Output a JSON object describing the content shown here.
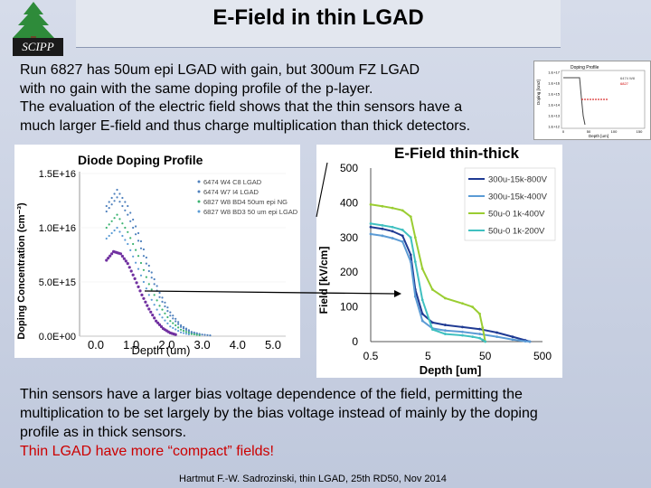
{
  "slide": {
    "title": "E-Field in thin LGAD",
    "logo_text": "SCIPP",
    "paragraph1": [
      "Run 6827 has 50um epi LGAD with gain, but 300um FZ LGAD",
      "with no gain with the same doping profile of the p-layer.",
      "The evaluation of the electric field shows that the thin sensors have a",
      "much larger E-field and thus charge multiplication than thick detectors."
    ],
    "efield_label": "E-Field thin-thick",
    "paragraph2": [
      "Thin sensors have a larger bias voltage dependence of the field, permitting the",
      "multiplication to be set largely by the bias voltage instead of mainly by the doping",
      "profile as in thick sensors."
    ],
    "highlight": "Thin LGAD have more “compact” fields!",
    "footer": "Hartmut F.-W. Sadrozinski, thin LGAD, 25th RD50, Nov  2014"
  },
  "chart_data": [
    {
      "type": "scatter",
      "title": "Diode Doping Profile",
      "xlabel": "Depth (um)",
      "ylabel": "Doping Concentration (cm⁻³)",
      "x_ticks": [
        "0.0",
        "1.0",
        "2.0",
        "3.0",
        "4.0",
        "5.0"
      ],
      "y_ticks": [
        "0.0E+00",
        "5.0E+15",
        "1.0E+16",
        "1.5E+16"
      ],
      "xlim": [
        0,
        5
      ],
      "ylim": [
        0,
        1.5e+16
      ],
      "legend_position": "top-right",
      "colors": [
        "#4f81bd",
        "#4f81bd",
        "#3cb371",
        "#5b9bd5",
        "#7030a0"
      ],
      "series": [
        {
          "name": "6474 W4 C8 LGAD",
          "x": [
            0.3,
            0.6,
            0.9,
            1.2,
            1.5,
            1.8,
            2.1,
            2.4,
            2.7,
            3.0,
            3.3
          ],
          "values": [
            1.2e+16,
            1.35e+16,
            1.2e+16,
            9500000000000000.0,
            6500000000000000.0,
            4000000000000000.0,
            2200000000000000.0,
            1000000000000000.0,
            400000000000000.0,
            150000000000000.0,
            50000000000000.0
          ]
        },
        {
          "name": "6474 W7 I4 LGAD",
          "x": [
            0.3,
            0.6,
            0.9,
            1.2,
            1.5,
            1.8,
            2.1,
            2.4,
            2.7,
            3.0
          ],
          "values": [
            1.15e+16,
            1.28e+16,
            1.12e+16,
            8800000000000000.0,
            6000000000000000.0,
            3600000000000000.0,
            1900000000000000.0,
            850000000000000.0,
            320000000000000.0,
            100000000000000.0
          ]
        },
        {
          "name": "6827 W8 BD4 50um epi NG",
          "x": [
            0.3,
            0.6,
            0.9,
            1.2,
            1.5,
            1.8,
            2.1,
            2.4,
            2.7,
            3.0
          ],
          "values": [
            1e+16,
            1.12e+16,
            9600000000000000.0,
            7400000000000000.0,
            4800000000000000.0,
            2800000000000000.0,
            1400000000000000.0,
            600000000000000.0,
            200000000000000.0,
            60000000000000.0
          ]
        },
        {
          "name": "6827 W8 BD3 50 um epi LGAD",
          "x": [
            0.3,
            0.6,
            0.9,
            1.2,
            1.5,
            1.8,
            2.1,
            2.4,
            2.7
          ],
          "values": [
            9000000000000000.0,
            1e+16,
            8500000000000000.0,
            6200000000000000.0,
            3800000000000000.0,
            2000000000000000.0,
            900000000000000.0,
            350000000000000.0,
            100000000000000.0
          ]
        },
        {
          "name": "",
          "x": [
            0.3,
            0.5,
            0.7,
            0.9,
            1.1,
            1.3,
            1.5,
            1.7,
            1.9,
            2.1,
            2.3
          ],
          "values": [
            7000000000000000.0,
            7800000000000000.0,
            7600000000000000.0,
            6700000000000000.0,
            5300000000000000.0,
            3800000000000000.0,
            2500000000000000.0,
            1400000000000000.0,
            700000000000000.0,
            300000000000000.0,
            100000000000000.0
          ]
        }
      ]
    },
    {
      "type": "line",
      "xlabel": "Depth [um]",
      "ylabel": "Field [kV/cm]",
      "x_ticks": [
        "0.5",
        "5",
        "50",
        "500"
      ],
      "y_ticks": [
        "0",
        "100",
        "200",
        "300",
        "400",
        "500"
      ],
      "xlim": [
        0.5,
        500
      ],
      "x_scale": "log",
      "ylim": [
        0,
        500
      ],
      "legend_position": "top-right",
      "series": [
        {
          "name": "300u-15k-800V",
          "color": "#1f3a93",
          "x": [
            0.5,
            0.8,
            1.2,
            1.8,
            2.5,
            3,
            4,
            6,
            10,
            20,
            40,
            80,
            150,
            250,
            300
          ],
          "values": [
            330,
            325,
            318,
            305,
            250,
            150,
            80,
            55,
            48,
            42,
            36,
            26,
            14,
            4,
            0
          ]
        },
        {
          "name": "300u-15k-400V",
          "color": "#5b9bd5",
          "x": [
            0.5,
            0.8,
            1.2,
            1.8,
            2.5,
            3,
            4,
            6,
            10,
            20,
            40,
            80,
            150,
            250,
            300
          ],
          "values": [
            310,
            305,
            298,
            288,
            230,
            130,
            60,
            38,
            32,
            28,
            22,
            14,
            6,
            1,
            0
          ]
        },
        {
          "name": "50u-0 1k-400V",
          "color": "#9acd32",
          "x": [
            0.5,
            0.8,
            1.2,
            1.8,
            2.5,
            3,
            4,
            6,
            10,
            20,
            30,
            40,
            45,
            50
          ],
          "values": [
            395,
            390,
            385,
            378,
            360,
            300,
            210,
            150,
            125,
            110,
            100,
            80,
            40,
            0
          ]
        },
        {
          "name": "50u-0 1k-200V",
          "color": "#40c0c0",
          "x": [
            0.5,
            0.8,
            1.2,
            1.8,
            2.5,
            3,
            4,
            6,
            10,
            20,
            30,
            40,
            45,
            50
          ],
          "values": [
            340,
            335,
            330,
            322,
            300,
            230,
            120,
            35,
            22,
            18,
            14,
            10,
            5,
            0
          ]
        }
      ]
    }
  ],
  "thumbnail": {
    "title": "Doping Profile",
    "ylabel": "Doping [/cm3]",
    "xlabel": "Depth [um]",
    "x_ticks": [
      "0",
      "50",
      "100",
      "150"
    ],
    "y_ticks": [
      "1.E+17",
      "1.E+16",
      "1.E+15",
      "1.E+14",
      "1.E+13",
      "1.E+12"
    ],
    "legend": [
      "6474 W8",
      "6827"
    ]
  }
}
